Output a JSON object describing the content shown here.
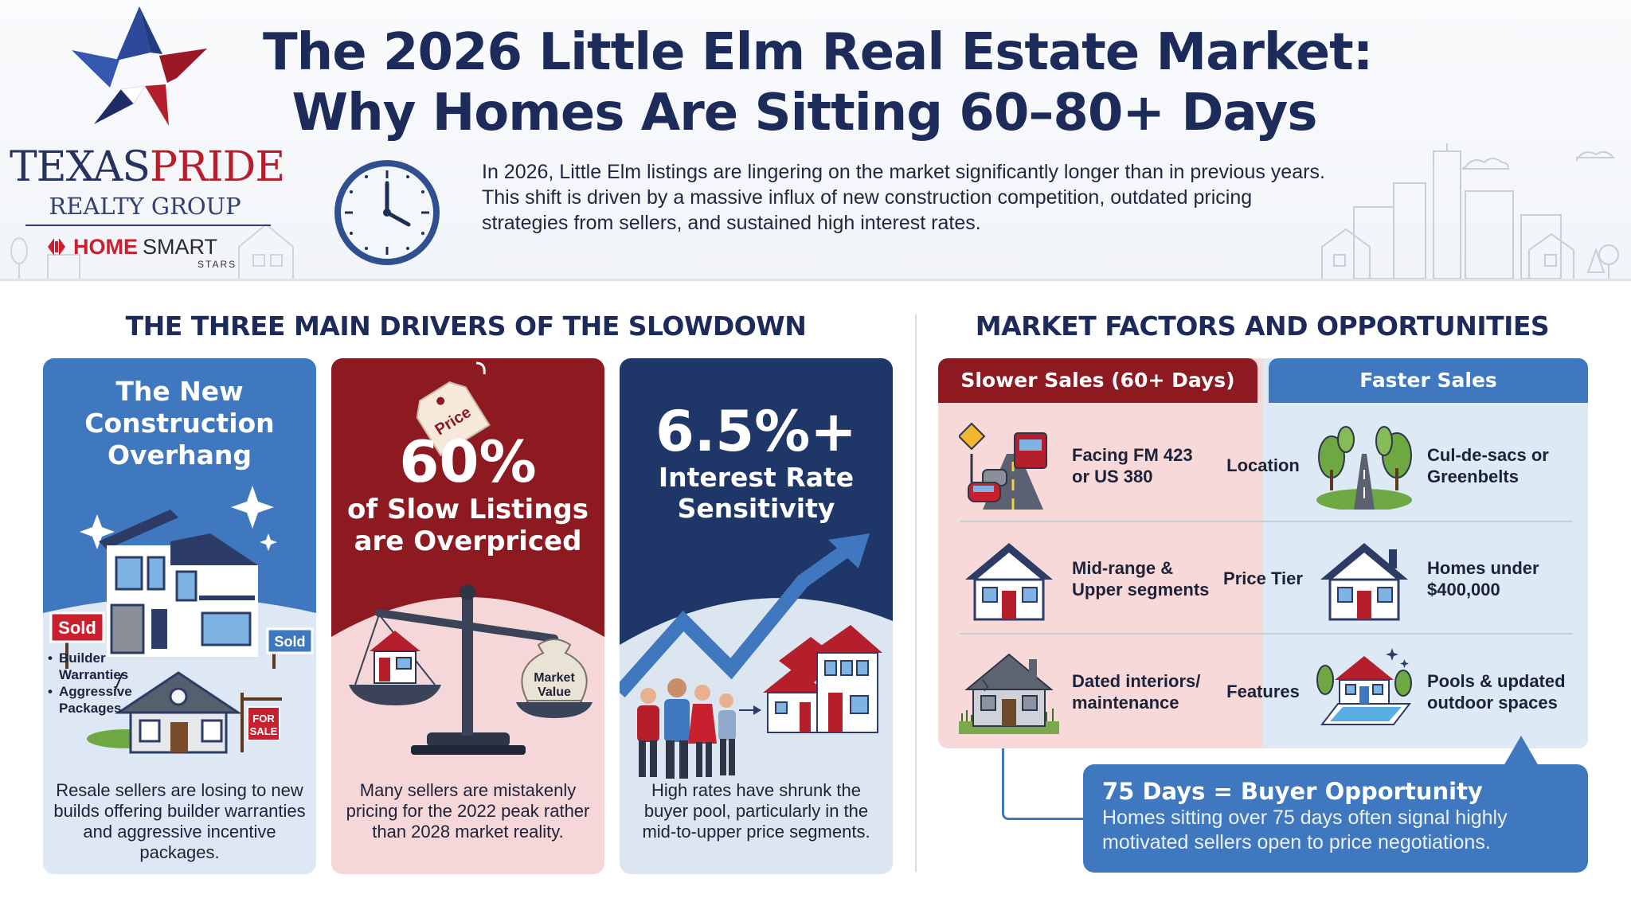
{
  "logo": {
    "name_part1": "TEXAS",
    "name_part2": "PRIDE",
    "subtitle": "REALTY GROUP",
    "brokerage_home": "HOME",
    "brokerage_smart": "SMART",
    "brokerage_sub": "STARS"
  },
  "header": {
    "title_line1": "The 2026 Little Elm Real Estate Market:",
    "title_line2": "Why Homes Are Sitting 60–80+ Days",
    "intro": "In 2026, Little Elm listings are lingering on the market significantly longer than in previous years. This shift is driven by a massive influx of new construction competition, outdated pricing strategies from sellers, and sustained high interest rates."
  },
  "drivers": {
    "heading": "THE THREE MAIN DRIVERS OF THE SLOWDOWN",
    "card1": {
      "title_line1": "The New",
      "title_line2": "Construction",
      "title_line3": "Overhang",
      "sold_sign_left": "Sold",
      "sold_sign_right": "Sold",
      "for_sale_line1": "FOR",
      "for_sale_line2": "SALE",
      "bullet1_line1": "Builder",
      "bullet1_line2": "Warranties",
      "bullet2_line1": "Aggressive",
      "bullet2_line2": "Packages",
      "description": "Resale sellers are losing to new builds offering builder warranties and aggressive incentive packages."
    },
    "card2": {
      "tag_text": "Price",
      "big_stat": "60%",
      "sub_line1": "of Slow Listings",
      "sub_line2": "are Overpriced",
      "bag_line1": "Market",
      "bag_line2": "Value",
      "description": "Many sellers are mistakenly pricing for the 2022 peak rather than 2028 market reality."
    },
    "card3": {
      "big_stat": "6.5%+",
      "sub_line1": "Interest Rate",
      "sub_line2": "Sensitivity",
      "description": "High rates have shrunk the buyer pool, particularly in the mid-to-upper price segments."
    }
  },
  "market_factors": {
    "heading": "MARKET FACTORS AND OPPORTUNITIES",
    "slow_header": "Slower Sales (60+ Days)",
    "fast_header": "Faster Sales",
    "rows": [
      {
        "label": "Location",
        "slow_line1": "Facing FM 423",
        "slow_line2": "or US 380",
        "fast_line1": "Cul-de-sacs or",
        "fast_line2": "Greenbelts"
      },
      {
        "label": "Price Tier",
        "slow_line1": "Mid-range &",
        "slow_line2": "Upper segments",
        "fast_line1": "Homes under",
        "fast_line2": "$400,000"
      },
      {
        "label": "Features",
        "slow_line1": "Dated interiors/",
        "slow_line2": "maintenance",
        "fast_line1": "Pools & updated",
        "fast_line2": "outdoor spaces"
      }
    ],
    "callout": {
      "title": "75 Days = Buyer Opportunity",
      "text": "Homes sitting over 75 days often signal highly motivated sellers open to price negotiations."
    }
  },
  "colors": {
    "navy": "#1d2b5a",
    "crimson": "#8d1a20",
    "blue": "#3f78bf",
    "pink": "#f8d9da",
    "light_blue": "#dde9f5"
  }
}
